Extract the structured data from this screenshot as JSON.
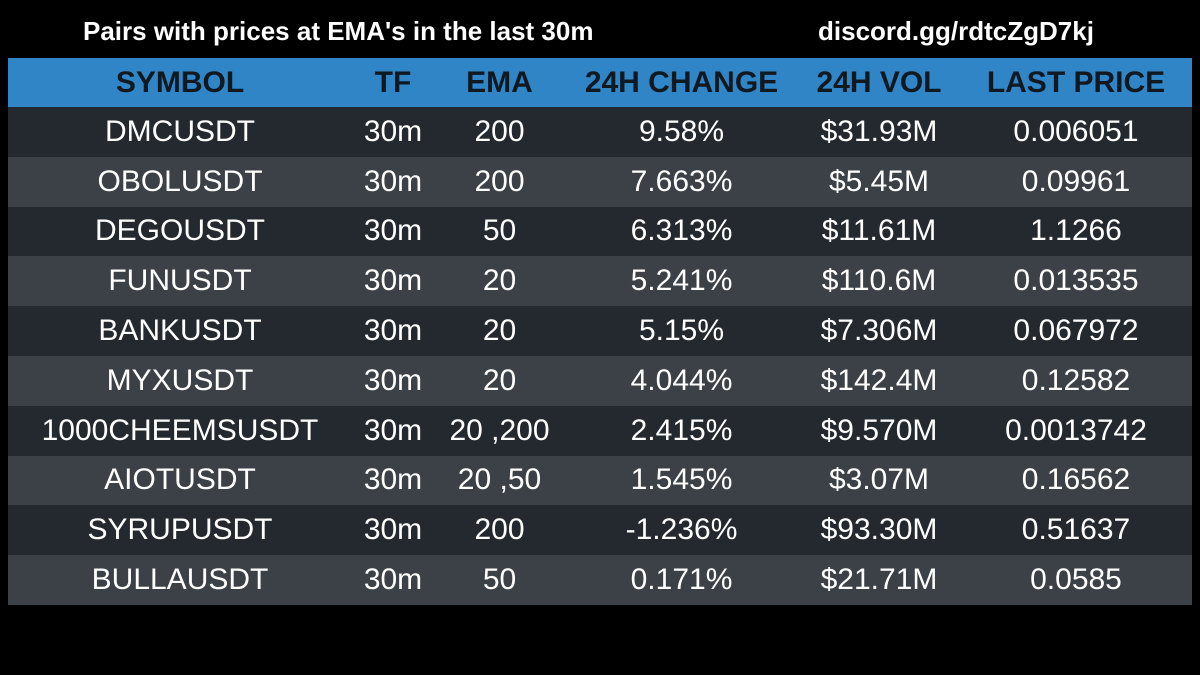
{
  "header": {
    "title": "Pairs with prices at EMA's in the last 30m",
    "link": "discord.gg/rdtcZgD7kj"
  },
  "table": {
    "columns": [
      "SYMBOL",
      "TF",
      "EMA",
      "24H CHANGE",
      "24H VOL",
      "LAST PRICE"
    ],
    "rows": [
      [
        "DMCUSDT",
        "30m",
        "200",
        "9.58%",
        "$31.93M",
        "0.006051"
      ],
      [
        "OBOLUSDT",
        "30m",
        "200",
        "7.663%",
        "$5.45M",
        "0.09961"
      ],
      [
        "DEGOUSDT",
        "30m",
        "50",
        "6.313%",
        "$11.61M",
        "1.1266"
      ],
      [
        "FUNUSDT",
        "30m",
        "20",
        "5.241%",
        "$110.6M",
        "0.013535"
      ],
      [
        "BANKUSDT",
        "30m",
        "20",
        "5.15%",
        "$7.306M",
        "0.067972"
      ],
      [
        "MYXUSDT",
        "30m",
        "20",
        "4.044%",
        "$142.4M",
        "0.12582"
      ],
      [
        "1000CHEEMSUSDT",
        "30m",
        "20 ,200",
        "2.415%",
        "$9.570M",
        "0.0013742"
      ],
      [
        "AIOTUSDT",
        "30m",
        "20 ,50",
        "1.545%",
        "$3.07M",
        "0.16562"
      ],
      [
        "SYRUPUSDT",
        "30m",
        "200",
        "-1.236%",
        "$93.30M",
        "0.51637"
      ],
      [
        "BULLAUSDT",
        "30m",
        "50",
        "0.171%",
        "$21.71M",
        "0.0585"
      ]
    ]
  },
  "colors": {
    "background": "#000000",
    "header_row": "#2f85c6",
    "row_dark": "#23292f",
    "row_light": "#3b4147",
    "header_text": "#101820",
    "text": "#ffffff"
  }
}
